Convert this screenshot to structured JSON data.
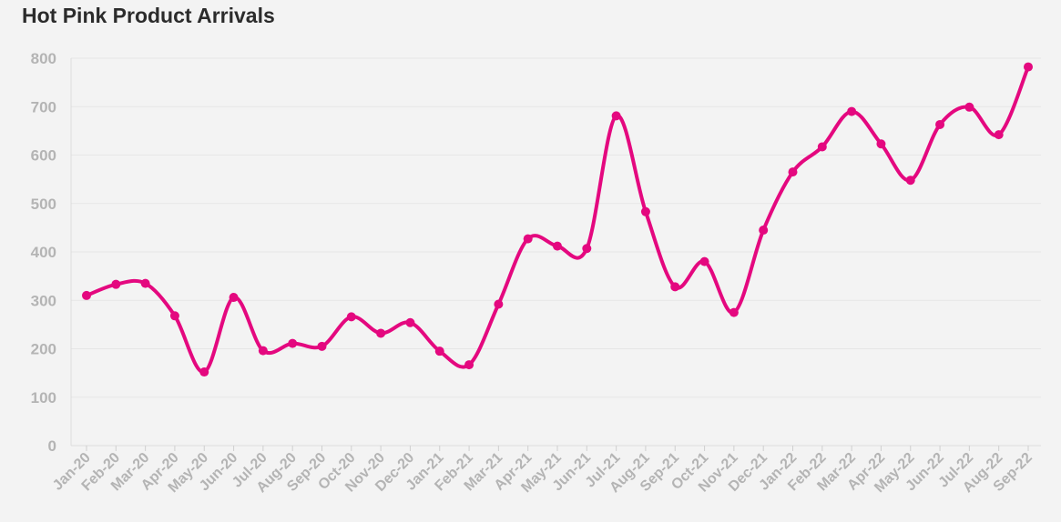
{
  "chart_data": {
    "type": "line",
    "title": "Hot Pink Product Arrivals",
    "xlabel": "",
    "ylabel": "",
    "ylim": [
      0,
      800
    ],
    "yticks": [
      "0",
      "100",
      "200",
      "300",
      "400",
      "500",
      "600",
      "700",
      "800"
    ],
    "grid": true,
    "color": "#e4087f",
    "categories": [
      "Jan-20",
      "Feb-20",
      "Mar-20",
      "Apr-20",
      "May-20",
      "Jun-20",
      "Jul-20",
      "Aug-20",
      "Sep-20",
      "Oct-20",
      "Nov-20",
      "Dec-20",
      "Jan-21",
      "Feb-21",
      "Mar-21",
      "Apr-21",
      "May-21",
      "Jun-21",
      "Jul-21",
      "Aug-21",
      "Sep-21",
      "Oct-21",
      "Nov-21",
      "Dec-21",
      "Jan-22",
      "Feb-22",
      "Mar-22",
      "Apr-22",
      "May-22",
      "Jun-22",
      "Jul-22",
      "Aug-22",
      "Sep-22"
    ],
    "values": [
      310,
      333,
      335,
      268,
      152,
      306,
      196,
      211,
      205,
      266,
      232,
      254,
      195,
      167,
      292,
      427,
      412,
      407,
      681,
      483,
      328,
      380,
      275,
      445,
      565,
      617,
      690,
      623,
      548,
      663,
      699,
      642,
      782
    ]
  }
}
